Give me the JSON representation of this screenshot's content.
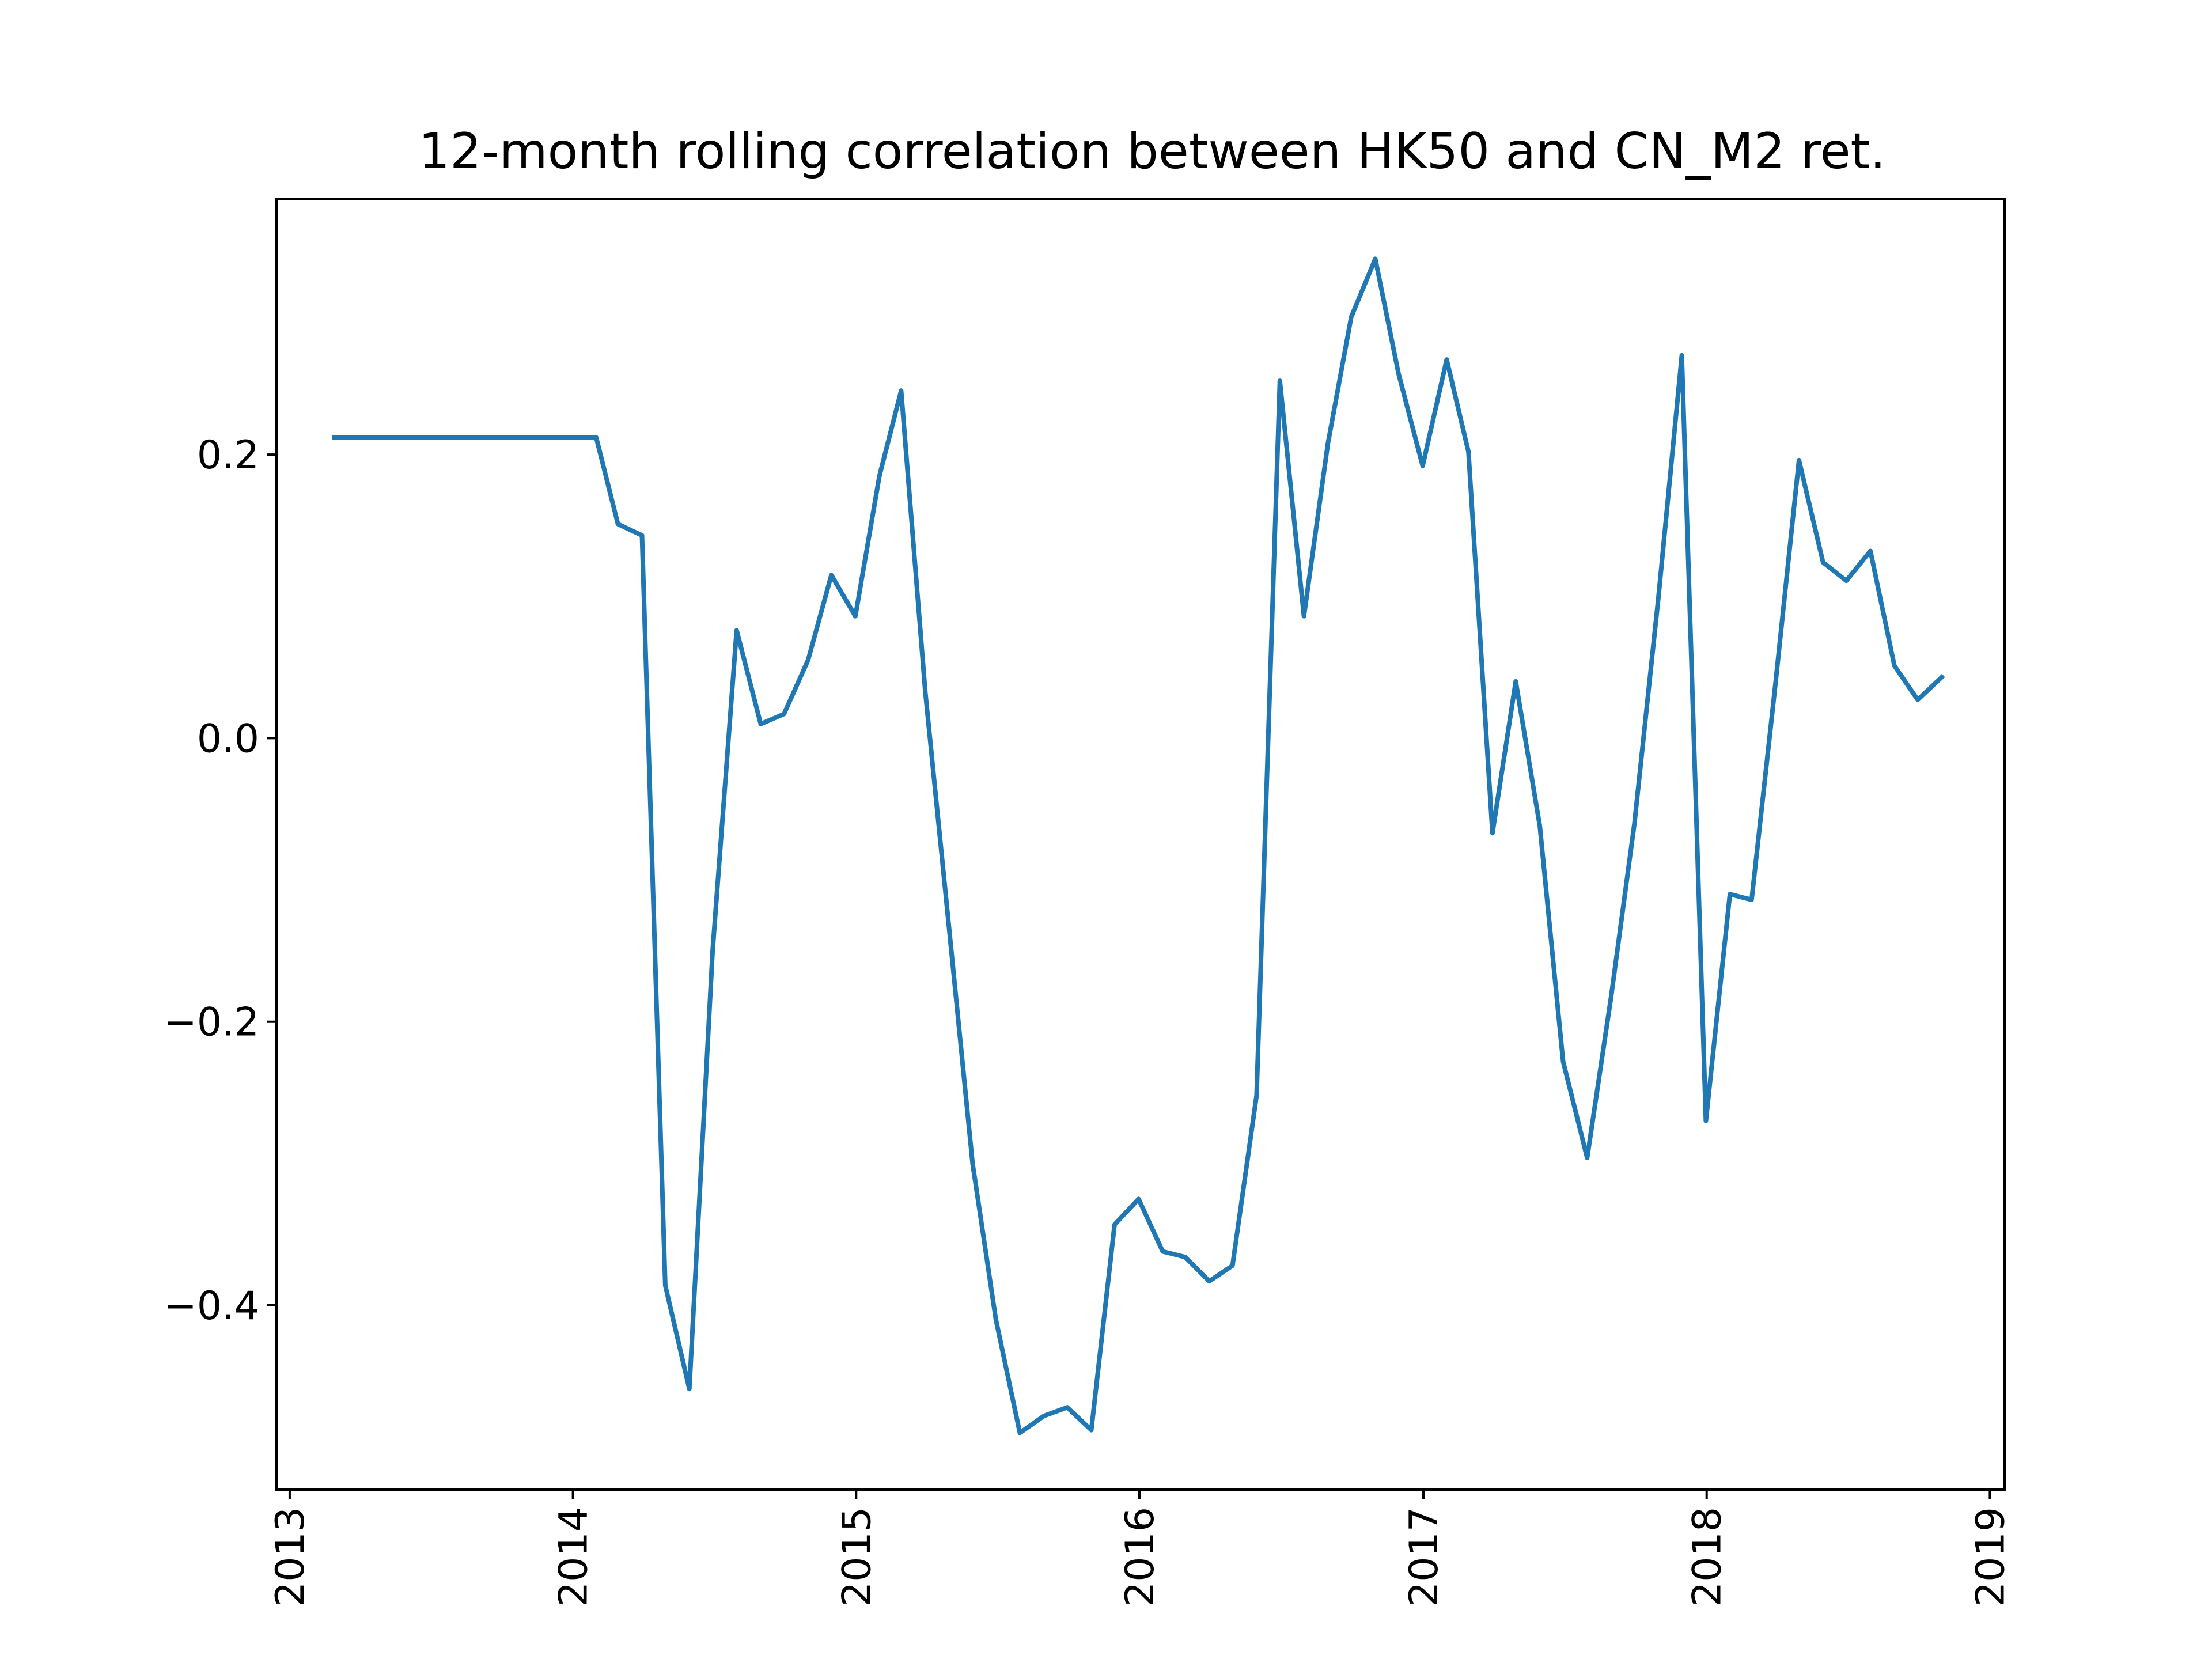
{
  "chart_data": {
    "type": "line",
    "title": "12-month rolling correlation between HK50 and CN_M2 ret.",
    "xlabel": "",
    "ylabel": "",
    "x_range": [
      "2012-12-15",
      "2019-01-20"
    ],
    "ylim": [
      -0.53,
      0.38
    ],
    "grid": false,
    "legend": "none",
    "x_ticks": [
      {
        "date": "2013-01-01",
        "label": "2013"
      },
      {
        "date": "2014-01-01",
        "label": "2014"
      },
      {
        "date": "2015-01-01",
        "label": "2015"
      },
      {
        "date": "2016-01-01",
        "label": "2016"
      },
      {
        "date": "2017-01-01",
        "label": "2017"
      },
      {
        "date": "2018-01-01",
        "label": "2018"
      },
      {
        "date": "2019-01-01",
        "label": "2019"
      }
    ],
    "y_ticks": [
      {
        "value": 0.2,
        "label": "0.2"
      },
      {
        "value": 0.0,
        "label": "0.0"
      },
      {
        "value": -0.2,
        "label": "−0.2"
      },
      {
        "value": -0.4,
        "label": "−0.4"
      }
    ],
    "series": [
      {
        "color": "#1f77b4",
        "points": [
          [
            "2013-02-28",
            0.212
          ],
          [
            "2013-03-31",
            0.212
          ],
          [
            "2013-04-30",
            0.212
          ],
          [
            "2013-05-31",
            0.212
          ],
          [
            "2013-06-30",
            0.212
          ],
          [
            "2013-07-31",
            0.212
          ],
          [
            "2013-08-31",
            0.212
          ],
          [
            "2013-09-30",
            0.212
          ],
          [
            "2013-10-31",
            0.212
          ],
          [
            "2013-11-30",
            0.212
          ],
          [
            "2013-12-31",
            0.212
          ],
          [
            "2014-01-31",
            0.212
          ],
          [
            "2014-02-28",
            0.151
          ],
          [
            "2014-03-31",
            0.143
          ],
          [
            "2014-04-30",
            -0.386
          ],
          [
            "2014-05-31",
            -0.459
          ],
          [
            "2014-06-30",
            -0.15
          ],
          [
            "2014-07-31",
            0.076
          ],
          [
            "2014-08-31",
            0.01
          ],
          [
            "2014-09-30",
            0.017
          ],
          [
            "2014-10-31",
            0.055
          ],
          [
            "2014-11-30",
            0.115
          ],
          [
            "2014-12-31",
            0.086
          ],
          [
            "2015-01-31",
            0.185
          ],
          [
            "2015-02-28",
            0.245
          ],
          [
            "2015-03-31",
            0.033
          ],
          [
            "2015-04-30",
            -0.13
          ],
          [
            "2015-05-31",
            -0.3
          ],
          [
            "2015-06-30",
            -0.41
          ],
          [
            "2015-07-31",
            -0.49
          ],
          [
            "2015-08-31",
            -0.478
          ],
          [
            "2015-09-30",
            -0.472
          ],
          [
            "2015-10-31",
            -0.488
          ],
          [
            "2015-11-30",
            -0.343
          ],
          [
            "2015-12-31",
            -0.325
          ],
          [
            "2016-01-31",
            -0.362
          ],
          [
            "2016-02-29",
            -0.366
          ],
          [
            "2016-03-31",
            -0.383
          ],
          [
            "2016-04-30",
            -0.372
          ],
          [
            "2016-05-31",
            -0.252
          ],
          [
            "2016-06-30",
            0.252
          ],
          [
            "2016-07-31",
            0.086
          ],
          [
            "2016-08-31",
            0.208
          ],
          [
            "2016-09-30",
            0.297
          ],
          [
            "2016-10-31",
            0.338
          ],
          [
            "2016-11-30",
            0.257
          ],
          [
            "2016-12-31",
            0.192
          ],
          [
            "2017-01-31",
            0.267
          ],
          [
            "2017-02-28",
            0.202
          ],
          [
            "2017-03-31",
            -0.067
          ],
          [
            "2017-04-30",
            0.04
          ],
          [
            "2017-05-31",
            -0.062
          ],
          [
            "2017-06-30",
            -0.228
          ],
          [
            "2017-07-31",
            -0.296
          ],
          [
            "2017-08-31",
            -0.182
          ],
          [
            "2017-09-30",
            -0.06
          ],
          [
            "2017-10-31",
            0.1
          ],
          [
            "2017-11-30",
            0.27
          ],
          [
            "2017-12-31",
            -0.27
          ],
          [
            "2018-01-31",
            -0.11
          ],
          [
            "2018-02-28",
            -0.114
          ],
          [
            "2018-03-31",
            0.04
          ],
          [
            "2018-04-30",
            0.196
          ],
          [
            "2018-05-31",
            0.124
          ],
          [
            "2018-06-30",
            0.111
          ],
          [
            "2018-07-31",
            0.132
          ],
          [
            "2018-08-31",
            0.051
          ],
          [
            "2018-09-30",
            0.027
          ],
          [
            "2018-10-31",
            0.043
          ]
        ]
      }
    ]
  }
}
